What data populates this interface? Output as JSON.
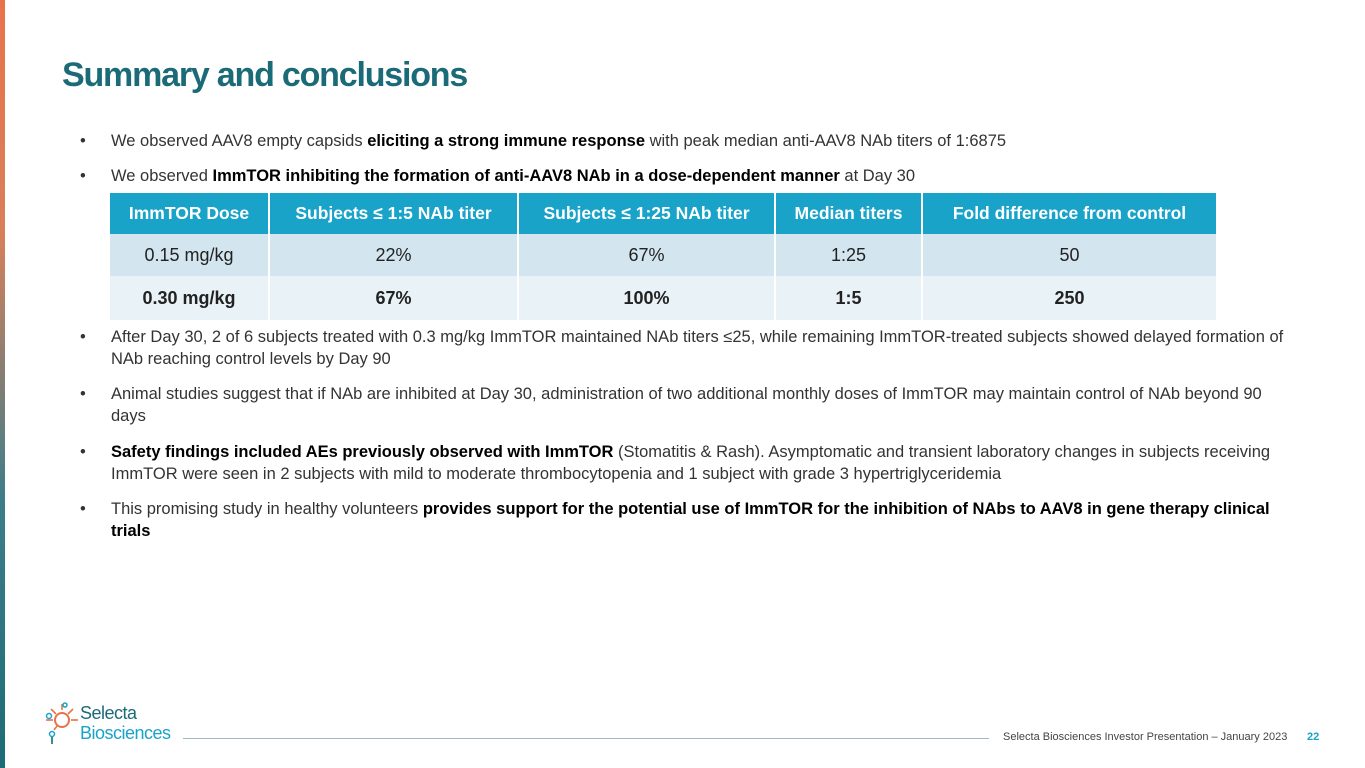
{
  "slide": {
    "title": "Summary and conclusions",
    "bullet_char": "•"
  },
  "bullets": [
    {
      "parts": [
        {
          "t": "We observed AAV8 empty capsids ",
          "b": false
        },
        {
          "t": "eliciting a strong immune response",
          "b": true
        },
        {
          "t": " with peak median anti-AAV8 NAb titers of 1:6875",
          "b": false
        }
      ]
    },
    {
      "parts": [
        {
          "t": "We observed ",
          "b": false
        },
        {
          "t": "ImmTOR inhibiting the formation of anti-AAV8 NAb in a dose-dependent manner",
          "b": true
        },
        {
          "t": " at Day 30",
          "b": false
        }
      ]
    },
    {
      "parts": [
        {
          "t": "After Day 30, 2 of 6 subjects treated with 0.3 mg/kg ImmTOR maintained NAb titers ≤25, while remaining ImmTOR-treated subjects showed delayed formation of NAb reaching control levels by Day 90",
          "b": false
        }
      ]
    },
    {
      "parts": [
        {
          "t": "Animal studies suggest that if NAb are inhibited at Day 30, administration of two additional monthly doses of ImmTOR may maintain control of NAb beyond 90 days",
          "b": false
        }
      ]
    },
    {
      "parts": [
        {
          "t": "Safety findings included AEs previously observed with ImmTOR",
          "b": true
        },
        {
          "t": " (Stomatitis & Rash).  Asymptomatic and transient laboratory changes in subjects receiving ImmTOR were seen in 2 subjects with mild to moderate thrombocytopenia and 1 subject with grade 3 hypertriglyceridemia",
          "b": false
        }
      ]
    },
    {
      "parts": [
        {
          "t": "This promising study in healthy volunteers ",
          "b": false
        },
        {
          "t": "provides support for the potential use of ImmTOR for the inhibition of NAbs to AAV8 in gene therapy clinical trials",
          "b": true
        }
      ]
    }
  ],
  "table": {
    "headers": [
      "ImmTOR Dose",
      "Subjects ≤ 1:5 NAb titer",
      "Subjects ≤ 1:25 NAb titer",
      "Median titers",
      "Fold difference from control"
    ],
    "rows": [
      [
        "0.15 mg/kg",
        "22%",
        "67%",
        "1:25",
        "50"
      ],
      [
        "0.30 mg/kg",
        "67%",
        "100%",
        "1:5",
        "250"
      ]
    ]
  },
  "footer": {
    "text": "Selecta Biosciences Investor Presentation – January 2023",
    "page": "22"
  },
  "logo": {
    "line1": "Selecta",
    "line2": "Biosciences"
  },
  "colors": {
    "title": "#1b6a77",
    "table_header": "#1aa3c9",
    "accent_orange": "#e8734a"
  }
}
